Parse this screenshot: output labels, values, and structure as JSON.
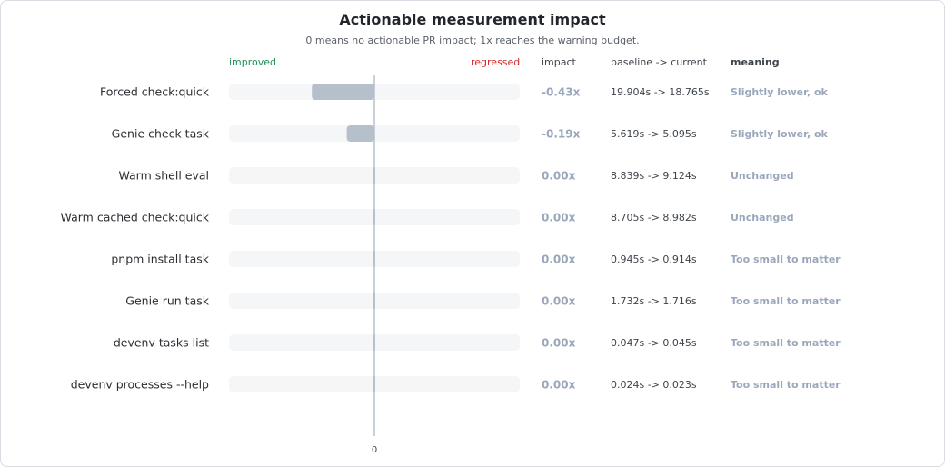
{
  "chart_data": {
    "type": "bar",
    "orientation": "horizontal",
    "title": "Actionable measurement impact",
    "subtitle": "0 means no actionable PR impact; 1x reaches the warning budget.",
    "axis_left_label": "improved",
    "axis_right_label": "regressed",
    "column_headers": {
      "impact": "impact",
      "baseline_current": "baseline -> current",
      "meaning": "meaning"
    },
    "xlim": [
      -1,
      1
    ],
    "zero_tick": "0",
    "categories": [
      "Forced check:quick",
      "Genie check task",
      "Warm shell eval",
      "Warm cached check:quick",
      "pnpm install task",
      "Genie run task",
      "devenv tasks list",
      "devenv processes --help"
    ],
    "values": [
      -0.43,
      -0.19,
      0.0,
      0.0,
      0.0,
      0.0,
      0.0,
      0.0
    ],
    "impact_labels": [
      "-0.43x",
      "-0.19x",
      "0.00x",
      "0.00x",
      "0.00x",
      "0.00x",
      "0.00x",
      "0.00x"
    ],
    "timings": [
      "19.904s -> 18.765s",
      "5.619s -> 5.095s",
      "8.839s -> 9.124s",
      "8.705s -> 8.982s",
      "0.945s -> 0.914s",
      "1.732s -> 1.716s",
      "0.047s -> 0.045s",
      "0.024s -> 0.023s"
    ],
    "meanings": [
      "Slightly lower, ok",
      "Slightly lower, ok",
      "Unchanged",
      "Unchanged",
      "Too small to matter",
      "Too small to matter",
      "Too small to matter",
      "Too small to matter"
    ],
    "colors": {
      "bar": "#b6c0cd",
      "track": "#f5f6f8",
      "zero_line": "#b6c0cd",
      "improved": "#1f8f57",
      "regressed": "#d12b2b",
      "muted_text": "#9aa7bb"
    }
  }
}
